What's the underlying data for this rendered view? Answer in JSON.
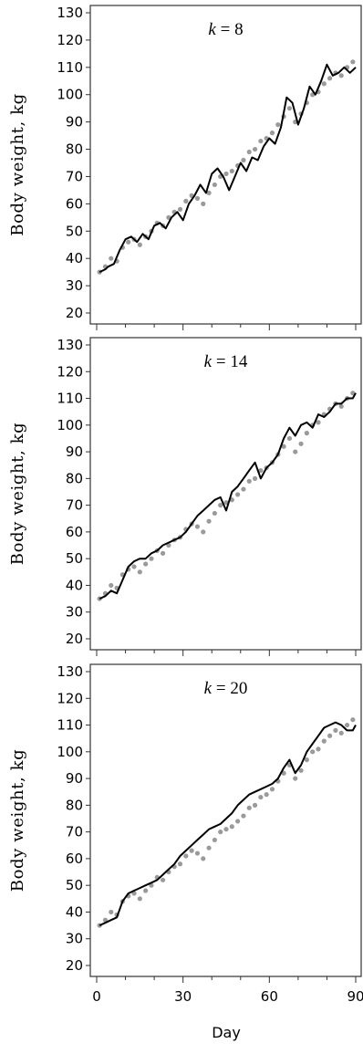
{
  "chart_data": [
    {
      "type": "line",
      "title_k": "k",
      "title_rest": " = 8",
      "xlabel": "",
      "ylabel": "Body weight, kg",
      "xlim": [
        0,
        90
      ],
      "ylim": [
        20,
        130
      ],
      "yticks": [
        20,
        30,
        40,
        50,
        60,
        70,
        80,
        90,
        100,
        110,
        120,
        130
      ],
      "xticks": [
        0,
        30,
        60,
        90
      ],
      "show_x_tick_labels": false,
      "grid": false,
      "series": [
        {
          "style": "dotted",
          "color": "#9a9a9a",
          "x": [
            1,
            3,
            5,
            7,
            9,
            11,
            13,
            15,
            17,
            19,
            21,
            23,
            25,
            27,
            29,
            31,
            33,
            35,
            37,
            39,
            41,
            43,
            45,
            47,
            49,
            51,
            53,
            55,
            57,
            59,
            61,
            63,
            65,
            67,
            69,
            71,
            73,
            75,
            77,
            79,
            81,
            83,
            85,
            87,
            89
          ],
          "values": [
            35,
            37,
            40,
            39,
            44,
            46,
            47,
            45,
            48,
            50,
            53,
            52,
            55,
            57,
            58,
            61,
            63,
            62,
            60,
            64,
            67,
            70,
            71,
            72,
            74,
            76,
            79,
            80,
            83,
            84,
            86,
            89,
            92,
            95,
            90,
            93,
            97,
            100,
            101,
            104,
            106,
            108,
            107,
            110,
            112
          ]
        },
        {
          "style": "solid",
          "color": "#000000",
          "x": [
            1,
            3,
            4,
            6,
            8,
            10,
            12,
            14,
            16,
            18,
            20,
            22,
            24,
            26,
            28,
            30,
            32,
            34,
            36,
            38,
            40,
            42,
            44,
            46,
            48,
            50,
            52,
            54,
            56,
            58,
            60,
            62,
            64,
            66,
            68,
            70,
            72,
            74,
            76,
            78,
            80,
            82,
            84,
            86,
            88,
            90
          ],
          "values": [
            35,
            36,
            37,
            38,
            43,
            47,
            48,
            46,
            49,
            47,
            52,
            53,
            51,
            55,
            57,
            54,
            60,
            63,
            67,
            64,
            71,
            73,
            70,
            65,
            70,
            75,
            72,
            77,
            76,
            81,
            84,
            82,
            88,
            99,
            97,
            89,
            95,
            103,
            100,
            105,
            111,
            107,
            108,
            110,
            108,
            110
          ]
        }
      ]
    },
    {
      "type": "line",
      "title_k": "k",
      "title_rest": " = 14",
      "xlabel": "",
      "ylabel": "Body weight, kg",
      "xlim": [
        0,
        90
      ],
      "ylim": [
        20,
        130
      ],
      "yticks": [
        20,
        30,
        40,
        50,
        60,
        70,
        80,
        90,
        100,
        110,
        120,
        130
      ],
      "xticks": [
        0,
        30,
        60,
        90
      ],
      "show_x_tick_labels": false,
      "grid": false,
      "series": [
        {
          "style": "dotted",
          "color": "#9a9a9a",
          "x": [
            1,
            3,
            5,
            7,
            9,
            11,
            13,
            15,
            17,
            19,
            21,
            23,
            25,
            27,
            29,
            31,
            33,
            35,
            37,
            39,
            41,
            43,
            45,
            47,
            49,
            51,
            53,
            55,
            57,
            59,
            61,
            63,
            65,
            67,
            69,
            71,
            73,
            75,
            77,
            79,
            81,
            83,
            85,
            87,
            89
          ],
          "values": [
            35,
            37,
            40,
            39,
            44,
            46,
            47,
            45,
            48,
            50,
            53,
            52,
            55,
            57,
            58,
            61,
            63,
            62,
            60,
            64,
            67,
            70,
            71,
            72,
            74,
            76,
            79,
            80,
            83,
            84,
            86,
            89,
            92,
            95,
            90,
            93,
            97,
            100,
            101,
            104,
            106,
            108,
            107,
            110,
            112
          ]
        },
        {
          "style": "solid",
          "color": "#000000",
          "x": [
            1,
            3,
            5,
            7,
            9,
            11,
            13,
            15,
            17,
            19,
            21,
            23,
            25,
            27,
            29,
            31,
            33,
            35,
            37,
            39,
            41,
            43,
            45,
            47,
            49,
            51,
            53,
            55,
            57,
            59,
            61,
            63,
            65,
            67,
            69,
            71,
            73,
            75,
            77,
            79,
            81,
            83,
            85,
            87,
            89,
            90
          ],
          "values": [
            35,
            36,
            38,
            37,
            42,
            47,
            49,
            50,
            50,
            52,
            53,
            55,
            56,
            57,
            58,
            60,
            63,
            66,
            68,
            70,
            72,
            73,
            68,
            75,
            77,
            80,
            83,
            86,
            80,
            84,
            86,
            89,
            95,
            99,
            96,
            100,
            101,
            99,
            104,
            103,
            105,
            108,
            108,
            110,
            110,
            112
          ]
        }
      ]
    },
    {
      "type": "line",
      "title_k": "k",
      "title_rest": " = 20",
      "xlabel": "Day",
      "ylabel": "Body weight, kg",
      "xlim": [
        0,
        90
      ],
      "ylim": [
        20,
        130
      ],
      "yticks": [
        20,
        30,
        40,
        50,
        60,
        70,
        80,
        90,
        100,
        110,
        120,
        130
      ],
      "xticks": [
        0,
        30,
        60,
        90
      ],
      "show_x_tick_labels": true,
      "grid": false,
      "series": [
        {
          "style": "dotted",
          "color": "#9a9a9a",
          "x": [
            1,
            3,
            5,
            7,
            9,
            11,
            13,
            15,
            17,
            19,
            21,
            23,
            25,
            27,
            29,
            31,
            33,
            35,
            37,
            39,
            41,
            43,
            45,
            47,
            49,
            51,
            53,
            55,
            57,
            59,
            61,
            63,
            65,
            67,
            69,
            71,
            73,
            75,
            77,
            79,
            81,
            83,
            85,
            87,
            89
          ],
          "values": [
            35,
            37,
            40,
            39,
            44,
            46,
            47,
            45,
            48,
            50,
            53,
            52,
            55,
            57,
            58,
            61,
            63,
            62,
            60,
            64,
            67,
            70,
            71,
            72,
            74,
            76,
            79,
            80,
            83,
            84,
            86,
            89,
            92,
            95,
            90,
            93,
            97,
            100,
            101,
            104,
            106,
            108,
            107,
            110,
            112
          ]
        },
        {
          "style": "solid",
          "color": "#000000",
          "x": [
            1,
            3,
            5,
            7,
            9,
            11,
            13,
            15,
            17,
            19,
            21,
            23,
            25,
            27,
            29,
            31,
            33,
            35,
            37,
            39,
            41,
            43,
            45,
            47,
            49,
            51,
            53,
            55,
            57,
            59,
            61,
            63,
            65,
            67,
            69,
            71,
            73,
            75,
            77,
            79,
            81,
            83,
            85,
            87,
            89,
            90
          ],
          "values": [
            35,
            36,
            37,
            38,
            44,
            47,
            48,
            49,
            50,
            51,
            52,
            54,
            56,
            58,
            61,
            63,
            65,
            67,
            69,
            71,
            72,
            73,
            75,
            77,
            80,
            82,
            84,
            85,
            86,
            87,
            88,
            90,
            94,
            97,
            92,
            95,
            100,
            103,
            106,
            109,
            110,
            111,
            110,
            108,
            108,
            110
          ]
        }
      ]
    }
  ]
}
